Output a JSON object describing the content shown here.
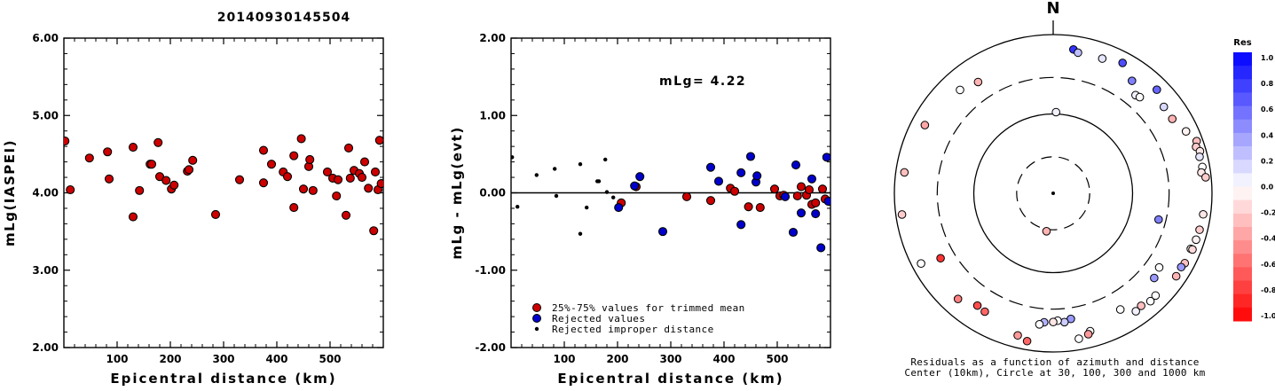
{
  "figure_title": "20140930145504",
  "chart_data": [
    {
      "id": "left",
      "type": "scatter",
      "ylabel": "mLg(IASPEI)",
      "xlabel": "Epicentral distance (km)",
      "xlim": [
        0,
        600
      ],
      "ylim": [
        2.0,
        6.0
      ],
      "yticks": [
        "2.00",
        "3.00",
        "4.00",
        "5.00",
        "6.00"
      ],
      "xticks": [
        "100",
        "200",
        "300",
        "400",
        "500"
      ],
      "point_color": "#cc0000",
      "points": [
        [
          2,
          4.67
        ],
        [
          12,
          4.04
        ],
        [
          48,
          4.45
        ],
        [
          82,
          4.53
        ],
        [
          85,
          4.18
        ],
        [
          130,
          4.59
        ],
        [
          130,
          3.69
        ],
        [
          142,
          4.03
        ],
        [
          162,
          4.37
        ],
        [
          165,
          4.37
        ],
        [
          177,
          4.65
        ],
        [
          180,
          4.21
        ],
        [
          192,
          4.16
        ],
        [
          202,
          4.05
        ],
        [
          207,
          4.1
        ],
        [
          232,
          4.28
        ],
        [
          235,
          4.3
        ],
        [
          242,
          4.42
        ],
        [
          285,
          3.72
        ],
        [
          330,
          4.17
        ],
        [
          375,
          4.55
        ],
        [
          375,
          4.13
        ],
        [
          390,
          4.37
        ],
        [
          412,
          4.27
        ],
        [
          420,
          4.21
        ],
        [
          432,
          4.48
        ],
        [
          432,
          3.81
        ],
        [
          446,
          4.7
        ],
        [
          450,
          4.05
        ],
        [
          460,
          4.34
        ],
        [
          462,
          4.43
        ],
        [
          468,
          4.03
        ],
        [
          495,
          4.27
        ],
        [
          505,
          4.19
        ],
        [
          515,
          4.17
        ],
        [
          512,
          3.96
        ],
        [
          530,
          3.71
        ],
        [
          535,
          4.58
        ],
        [
          538,
          4.19
        ],
        [
          545,
          4.29
        ],
        [
          555,
          4.25
        ],
        [
          560,
          4.2
        ],
        [
          565,
          4.4
        ],
        [
          572,
          4.06
        ],
        [
          582,
          3.51
        ],
        [
          585,
          4.27
        ],
        [
          590,
          4.04
        ],
        [
          593,
          4.68
        ],
        [
          596,
          4.12
        ]
      ]
    },
    {
      "id": "middle",
      "type": "scatter",
      "ylabel": "mLg - mLg(evt)",
      "xlabel": "Epicentral distance (km)",
      "xlim": [
        0,
        600
      ],
      "ylim": [
        -2.0,
        2.0
      ],
      "yticks": [
        "-2.00",
        "-1.00",
        "0.00",
        "1.00",
        "2.00"
      ],
      "xticks": [
        "100",
        "200",
        "300",
        "400",
        "500"
      ],
      "annotation": "mLg= 4.22",
      "reference_line": 0.0,
      "legend": [
        {
          "label": "25%-75% values for trimmed mean",
          "color": "#cc0000",
          "marker": "circle"
        },
        {
          "label": "Rejected values",
          "color": "#0000cc",
          "marker": "circle"
        },
        {
          "label": "Rejected improper distance",
          "color": "#000000",
          "marker": "dot"
        }
      ],
      "series": [
        {
          "name": "25%-75% values for trimmed mean",
          "color": "#cc0000",
          "points": [
            [
              207,
              -0.13
            ],
            [
              235,
              0.08
            ],
            [
              330,
              -0.05
            ],
            [
              375,
              -0.1
            ],
            [
              412,
              0.06
            ],
            [
              420,
              0.02
            ],
            [
              446,
              -0.18
            ],
            [
              468,
              -0.19
            ],
            [
              495,
              0.05
            ],
            [
              505,
              -0.04
            ],
            [
              512,
              -0.03
            ],
            [
              538,
              -0.04
            ],
            [
              545,
              0.08
            ],
            [
              555,
              -0.03
            ],
            [
              560,
              0.04
            ],
            [
              565,
              -0.15
            ],
            [
              572,
              -0.13
            ],
            [
              585,
              0.05
            ],
            [
              590,
              -0.08
            ]
          ]
        },
        {
          "name": "Rejected values",
          "color": "#0000cc",
          "points": [
            [
              202,
              -0.19
            ],
            [
              232,
              0.09
            ],
            [
              242,
              0.21
            ],
            [
              285,
              -0.5
            ],
            [
              375,
              0.33
            ],
            [
              390,
              0.15
            ],
            [
              432,
              0.26
            ],
            [
              432,
              -0.41
            ],
            [
              450,
              0.47
            ],
            [
              460,
              0.14
            ],
            [
              462,
              0.22
            ],
            [
              515,
              -0.05
            ],
            [
              530,
              -0.51
            ],
            [
              535,
              0.36
            ],
            [
              545,
              -0.26
            ],
            [
              565,
              0.18
            ],
            [
              572,
              -0.27
            ],
            [
              582,
              -0.71
            ],
            [
              593,
              0.46
            ],
            [
              596,
              -0.11
            ]
          ]
        },
        {
          "name": "Rejected improper distance",
          "color": "#000000",
          "points": [
            [
              2,
              0.46
            ],
            [
              12,
              -0.18
            ],
            [
              48,
              0.23
            ],
            [
              82,
              0.31
            ],
            [
              85,
              -0.04
            ],
            [
              130,
              0.37
            ],
            [
              130,
              -0.53
            ],
            [
              142,
              -0.19
            ],
            [
              162,
              0.15
            ],
            [
              165,
              0.15
            ],
            [
              177,
              0.43
            ],
            [
              180,
              0.01
            ],
            [
              192,
              -0.06
            ]
          ]
        }
      ]
    },
    {
      "id": "polar",
      "type": "scatter",
      "north_label": "N",
      "caption_line1": "Residuals as a function of azimuth and distance",
      "caption_line2": "Center (10km), Circle at 30, 100, 300 and 1000 km",
      "colorbar_title": "Res",
      "colorbar_ticks": [
        "1.0",
        "0.8",
        "0.6",
        "0.4",
        "0.2",
        "0.0",
        "-0.2",
        "-0.4",
        "-0.6",
        "-0.8",
        "-1.0"
      ],
      "colorbar_range": [
        -1.0,
        1.0
      ],
      "positive_color": "#0000ff",
      "negative_color": "#ff0000",
      "stations": [
        {
          "az": 2,
          "dist": 110,
          "res": 0.05
        },
        {
          "az": 8,
          "dist": 780,
          "res": 0.8
        },
        {
          "az": 10,
          "dist": 740,
          "res": 0.25
        },
        {
          "az": 20,
          "dist": 750,
          "res": 0.1
        },
        {
          "az": 28,
          "dist": 820,
          "res": 0.7
        },
        {
          "az": 35,
          "dist": 650,
          "res": 0.5
        },
        {
          "az": 40,
          "dist": 500,
          "res": 0.05
        },
        {
          "az": 42,
          "dist": 520,
          "res": 0.0
        },
        {
          "az": 45,
          "dist": 800,
          "res": 0.6
        },
        {
          "az": 52,
          "dist": 700,
          "res": 0.15
        },
        {
          "az": 58,
          "dist": 700,
          "res": -0.3
        },
        {
          "az": 65,
          "dist": 800,
          "res": -0.05
        },
        {
          "az": 70,
          "dist": 900,
          "res": -0.25
        },
        {
          "az": 72,
          "dist": 860,
          "res": -0.2
        },
        {
          "az": 74,
          "dist": 900,
          "res": -0.1
        },
        {
          "az": 76,
          "dist": 870,
          "res": 0.1
        },
        {
          "az": 80,
          "dist": 880,
          "res": 0.0
        },
        {
          "az": 82,
          "dist": 850,
          "res": -0.1
        },
        {
          "az": 84,
          "dist": 910,
          "res": -0.2
        },
        {
          "az": 104,
          "dist": 260,
          "res": 0.5
        },
        {
          "az": 98,
          "dist": 880,
          "res": -0.1
        },
        {
          "az": 104,
          "dist": 870,
          "res": -0.2
        },
        {
          "az": 108,
          "dist": 860,
          "res": -0.05
        },
        {
          "az": 112,
          "dist": 830,
          "res": 0.0
        },
        {
          "az": 112,
          "dist": 860,
          "res": -0.15
        },
        {
          "az": 118,
          "dist": 840,
          "res": -0.25
        },
        {
          "az": 120,
          "dist": 820,
          "res": 0.4
        },
        {
          "az": 124,
          "dist": 830,
          "res": -0.3
        },
        {
          "az": 125,
          "dist": 520,
          "res": 0.0
        },
        {
          "az": 130,
          "dist": 560,
          "res": 0.4
        },
        {
          "az": 135,
          "dist": 770,
          "res": 0.0
        },
        {
          "az": 138,
          "dist": 780,
          "res": 0.0
        },
        {
          "az": 142,
          "dist": 740,
          "res": -0.25
        },
        {
          "az": 145,
          "dist": 760,
          "res": 0.05
        },
        {
          "az": 150,
          "dist": 600,
          "res": 0.0
        },
        {
          "az": 165,
          "dist": 740,
          "res": 0.0
        },
        {
          "az": 166,
          "dist": 780,
          "res": -0.4
        },
        {
          "az": 170,
          "dist": 820,
          "res": 0.0
        },
        {
          "az": 172,
          "dist": 480,
          "res": 0.4
        },
        {
          "az": 175,
          "dist": 520,
          "res": 0.2
        },
        {
          "az": 178,
          "dist": 490,
          "res": 0.0
        },
        {
          "az": 180,
          "dist": 510,
          "res": -0.1
        },
        {
          "az": 184,
          "dist": 520,
          "res": 0.3
        },
        {
          "az": 186,
          "dist": 560,
          "res": 0.0
        },
        {
          "az": 190,
          "dist": 860,
          "res": -0.6
        },
        {
          "az": 194,
          "dist": 800,
          "res": -0.4
        },
        {
          "az": 210,
          "dist": 640,
          "res": -0.6
        },
        {
          "az": 214,
          "dist": 620,
          "res": -0.7
        },
        {
          "az": 222,
          "dist": 730,
          "res": -0.5
        },
        {
          "az": 190,
          "dist": 40,
          "res": -0.3
        },
        {
          "az": 242,
          "dist": 850,
          "res": 0.0
        },
        {
          "az": 240,
          "dist": 530,
          "res": -0.8
        },
        {
          "az": 262,
          "dist": 900,
          "res": -0.2
        },
        {
          "az": 278,
          "dist": 860,
          "res": -0.25
        },
        {
          "az": 298,
          "dist": 780,
          "res": -0.35
        },
        {
          "az": 318,
          "dist": 680,
          "res": 0.0
        },
        {
          "az": 326,
          "dist": 600,
          "res": -0.3
        }
      ]
    }
  ]
}
